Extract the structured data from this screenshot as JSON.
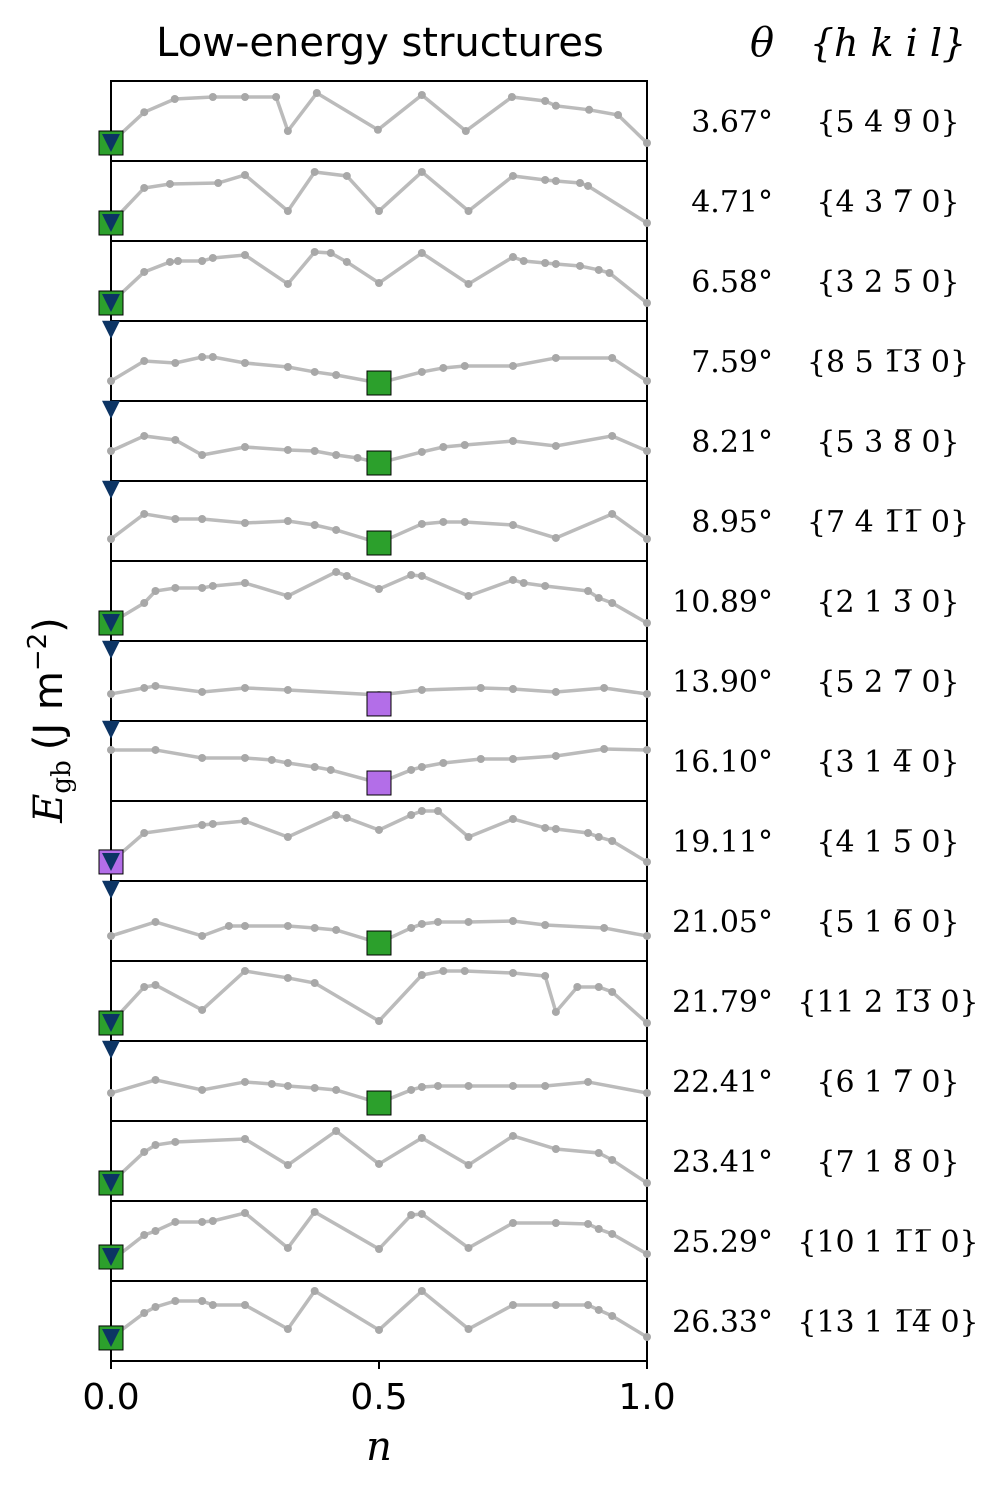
{
  "chart_data": {
    "type": "line",
    "title": "Low-energy structures",
    "theta_header": "θ",
    "plane_header": "{h k i l}",
    "ylabel": {
      "symbol": "E",
      "subscript": "gb",
      "unit": "(J m",
      "exponent": "−2",
      "close": ")"
    },
    "xlabel": "n",
    "xlim": [
      0,
      1
    ],
    "xticks": [
      {
        "value": 0,
        "label": "0.0"
      },
      {
        "value": 0.5,
        "label": "0.5"
      },
      {
        "value": 1,
        "label": "1.0"
      }
    ],
    "ylim": [
      0,
      1
    ],
    "line_color": "#bbbbbb",
    "triangle_color": "#0c3464",
    "panels": [
      {
        "theta": "3.67°",
        "plane": "{5 4 9̅ 0}",
        "x": [
          0,
          0.062,
          0.119,
          0.19,
          0.25,
          0.308,
          0.33,
          0.384,
          0.498,
          0.58,
          0.662,
          0.748,
          0.81,
          0.83,
          0.892,
          0.946,
          1
        ],
        "values": [
          0.225,
          0.61,
          0.775,
          0.8,
          0.8,
          0.8,
          0.375,
          0.85,
          0.39,
          0.825,
          0.375,
          0.8,
          0.75,
          0.69,
          0.64,
          0.575,
          0.225
        ],
        "square": {
          "x": 0,
          "y": 0.225,
          "color": "#2ca02c"
        },
        "triangle": {
          "x": 0,
          "y": 0.225
        }
      },
      {
        "theta": "4.71°",
        "plane": "{4 3 7̅ 0}",
        "x": [
          0,
          0.062,
          0.11,
          0.2,
          0.25,
          0.33,
          0.38,
          0.44,
          0.5,
          0.58,
          0.667,
          0.75,
          0.81,
          0.83,
          0.875,
          0.89,
          1
        ],
        "values": [
          0.225,
          0.663,
          0.713,
          0.725,
          0.825,
          0.375,
          0.863,
          0.813,
          0.375,
          0.863,
          0.375,
          0.813,
          0.763,
          0.75,
          0.725,
          0.688,
          0.225
        ],
        "square": {
          "x": 0,
          "y": 0.225,
          "color": "#2ca02c"
        },
        "triangle": {
          "x": 0,
          "y": 0.225
        }
      },
      {
        "theta": "6.58°",
        "plane": "{3 2 5̅ 0}",
        "x": [
          0,
          0.062,
          0.11,
          0.125,
          0.17,
          0.19,
          0.25,
          0.33,
          0.38,
          0.41,
          0.44,
          0.5,
          0.58,
          0.667,
          0.75,
          0.77,
          0.81,
          0.83,
          0.875,
          0.91,
          0.93,
          1
        ],
        "values": [
          0.225,
          0.613,
          0.738,
          0.75,
          0.75,
          0.788,
          0.825,
          0.463,
          0.863,
          0.85,
          0.738,
          0.475,
          0.85,
          0.463,
          0.8,
          0.75,
          0.725,
          0.713,
          0.688,
          0.638,
          0.6,
          0.225
        ],
        "square": {
          "x": 0,
          "y": 0.225,
          "color": "#2ca02c"
        },
        "triangle": {
          "x": 0,
          "y": 0.225
        }
      },
      {
        "theta": "7.59°",
        "plane": "{8 5 1̅3̅ 0}",
        "x": [
          0,
          0.062,
          0.12,
          0.17,
          0.19,
          0.25,
          0.33,
          0.38,
          0.42,
          0.5,
          0.58,
          0.62,
          0.66,
          0.75,
          0.83,
          0.935,
          1
        ],
        "values": [
          0.25,
          0.5,
          0.475,
          0.55,
          0.55,
          0.475,
          0.425,
          0.363,
          0.325,
          0.225,
          0.363,
          0.413,
          0.438,
          0.438,
          0.538,
          0.538,
          0.25
        ],
        "square": {
          "x": 0.5,
          "y": 0.225,
          "color": "#2ca02c"
        },
        "triangle": {
          "x": 0,
          "y": 0.89
        }
      },
      {
        "theta": "8.21°",
        "plane": "{5 3 8̅ 0}",
        "x": [
          0,
          0.062,
          0.12,
          0.17,
          0.25,
          0.33,
          0.38,
          0.42,
          0.46,
          0.5,
          0.58,
          0.62,
          0.66,
          0.75,
          0.83,
          0.935,
          1
        ],
        "values": [
          0.375,
          0.563,
          0.513,
          0.325,
          0.425,
          0.388,
          0.375,
          0.325,
          0.288,
          0.225,
          0.363,
          0.425,
          0.45,
          0.5,
          0.438,
          0.563,
          0.375
        ],
        "square": {
          "x": 0.5,
          "y": 0.225,
          "color": "#2ca02c"
        },
        "triangle": {
          "x": 0,
          "y": 0.89
        }
      },
      {
        "theta": "8.95°",
        "plane": "{7 4 1̅1̅ 0}",
        "x": [
          0,
          0.062,
          0.12,
          0.17,
          0.25,
          0.33,
          0.38,
          0.42,
          0.5,
          0.58,
          0.62,
          0.66,
          0.75,
          0.83,
          0.935,
          1
        ],
        "values": [
          0.275,
          0.588,
          0.525,
          0.525,
          0.475,
          0.5,
          0.45,
          0.388,
          0.225,
          0.463,
          0.488,
          0.488,
          0.45,
          0.288,
          0.588,
          0.275
        ],
        "square": {
          "x": 0.5,
          "y": 0.225,
          "color": "#2ca02c"
        },
        "triangle": {
          "x": 0,
          "y": 0.89
        }
      },
      {
        "theta": "10.89°",
        "plane": "{2 1 3̅ 0}",
        "x": [
          0,
          0.062,
          0.083,
          0.12,
          0.17,
          0.19,
          0.25,
          0.33,
          0.42,
          0.44,
          0.5,
          0.56,
          0.58,
          0.667,
          0.75,
          0.77,
          0.81,
          0.89,
          0.91,
          0.935,
          1
        ],
        "values": [
          0.225,
          0.475,
          0.625,
          0.663,
          0.663,
          0.688,
          0.725,
          0.563,
          0.863,
          0.813,
          0.65,
          0.825,
          0.813,
          0.563,
          0.763,
          0.725,
          0.688,
          0.625,
          0.538,
          0.475,
          0.225
        ],
        "square": {
          "x": 0,
          "y": 0.225,
          "color": "#2ca02c"
        },
        "triangle": {
          "x": 0,
          "y": 0.225
        }
      },
      {
        "theta": "13.90°",
        "plane": "{5 2 7̅ 0}",
        "x": [
          0,
          0.062,
          0.083,
          0.17,
          0.25,
          0.33,
          0.5,
          0.58,
          0.69,
          0.75,
          0.83,
          0.92,
          1
        ],
        "values": [
          0.338,
          0.413,
          0.438,
          0.363,
          0.413,
          0.388,
          0.325,
          0.388,
          0.413,
          0.4,
          0.363,
          0.413,
          0.338
        ],
        "square": {
          "x": 0.5,
          "y": 0.213,
          "color": "#b36ee8"
        },
        "triangle": {
          "x": 0,
          "y": 0.89
        }
      },
      {
        "theta": "16.10°",
        "plane": "{3 1 4̅ 0}",
        "x": [
          0,
          0.083,
          0.17,
          0.25,
          0.3,
          0.33,
          0.38,
          0.41,
          0.5,
          0.56,
          0.58,
          0.62,
          0.69,
          0.75,
          0.83,
          0.92,
          1
        ],
        "values": [
          0.638,
          0.638,
          0.538,
          0.538,
          0.513,
          0.475,
          0.425,
          0.388,
          0.225,
          0.388,
          0.425,
          0.475,
          0.525,
          0.525,
          0.563,
          0.65,
          0.638
        ],
        "square": {
          "x": 0.5,
          "y": 0.225,
          "color": "#b36ee8"
        },
        "triangle": {
          "x": 0,
          "y": 0.89
        }
      },
      {
        "theta": "19.11°",
        "plane": "{4 1 5̅ 0}",
        "x": [
          0,
          0.062,
          0.17,
          0.19,
          0.25,
          0.33,
          0.42,
          0.44,
          0.5,
          0.56,
          0.58,
          0.61,
          0.667,
          0.75,
          0.81,
          0.83,
          0.89,
          0.91,
          0.935,
          1
        ],
        "values": [
          0.238,
          0.6,
          0.7,
          0.713,
          0.75,
          0.55,
          0.825,
          0.788,
          0.638,
          0.825,
          0.875,
          0.875,
          0.55,
          0.775,
          0.663,
          0.65,
          0.6,
          0.55,
          0.5,
          0.238
        ],
        "square": {
          "x": 0,
          "y": 0.238,
          "color": "#b36ee8"
        },
        "triangle": {
          "x": 0,
          "y": 0.238
        }
      },
      {
        "theta": "21.05°",
        "plane": "{5 1 6̅ 0}",
        "x": [
          0,
          0.083,
          0.17,
          0.22,
          0.25,
          0.33,
          0.38,
          0.42,
          0.5,
          0.56,
          0.58,
          0.61,
          0.667,
          0.75,
          0.81,
          0.92,
          1
        ],
        "values": [
          0.313,
          0.488,
          0.313,
          0.438,
          0.438,
          0.438,
          0.413,
          0.388,
          0.225,
          0.413,
          0.463,
          0.488,
          0.488,
          0.5,
          0.45,
          0.413,
          0.313
        ],
        "square": {
          "x": 0.5,
          "y": 0.225,
          "color": "#2ca02c"
        },
        "triangle": {
          "x": 0,
          "y": 0.89
        }
      },
      {
        "theta": "21.79°",
        "plane": "{11 2 1̅3̅ 0}",
        "x": [
          0,
          0.062,
          0.083,
          0.17,
          0.25,
          0.33,
          0.38,
          0.5,
          0.58,
          0.62,
          0.66,
          0.75,
          0.81,
          0.83,
          0.87,
          0.91,
          0.935,
          1
        ],
        "values": [
          0.225,
          0.675,
          0.7,
          0.388,
          0.875,
          0.788,
          0.725,
          0.25,
          0.825,
          0.875,
          0.875,
          0.85,
          0.813,
          0.363,
          0.675,
          0.675,
          0.613,
          0.225
        ],
        "square": {
          "x": 0,
          "y": 0.225,
          "color": "#2ca02c"
        },
        "triangle": {
          "x": 0,
          "y": 0.225
        }
      },
      {
        "theta": "22.41°",
        "plane": "{6 1 7̅ 0}",
        "x": [
          0,
          0.083,
          0.17,
          0.25,
          0.3,
          0.33,
          0.38,
          0.42,
          0.5,
          0.56,
          0.58,
          0.61,
          0.667,
          0.75,
          0.81,
          0.89,
          1
        ],
        "values": [
          0.35,
          0.513,
          0.388,
          0.488,
          0.463,
          0.438,
          0.413,
          0.388,
          0.225,
          0.388,
          0.425,
          0.438,
          0.438,
          0.438,
          0.438,
          0.488,
          0.35
        ],
        "square": {
          "x": 0.5,
          "y": 0.225,
          "color": "#2ca02c"
        },
        "triangle": {
          "x": 0,
          "y": 0.89
        }
      },
      {
        "theta": "23.41°",
        "plane": "{7 1 8̅ 0}",
        "x": [
          0,
          0.062,
          0.083,
          0.12,
          0.25,
          0.33,
          0.42,
          0.5,
          0.58,
          0.667,
          0.75,
          0.83,
          0.91,
          0.935,
          1
        ],
        "values": [
          0.225,
          0.613,
          0.7,
          0.738,
          0.775,
          0.45,
          0.875,
          0.463,
          0.788,
          0.45,
          0.813,
          0.65,
          0.6,
          0.513,
          0.225
        ],
        "square": {
          "x": 0,
          "y": 0.225,
          "color": "#2ca02c"
        },
        "triangle": {
          "x": 0,
          "y": 0.225
        }
      },
      {
        "theta": "25.29°",
        "plane": "{10 1 1̅1̅ 0}",
        "x": [
          0,
          0.062,
          0.083,
          0.12,
          0.17,
          0.19,
          0.25,
          0.33,
          0.38,
          0.5,
          0.56,
          0.58,
          0.667,
          0.75,
          0.83,
          0.89,
          0.91,
          0.935,
          1
        ],
        "values": [
          0.25,
          0.575,
          0.625,
          0.738,
          0.738,
          0.75,
          0.85,
          0.413,
          0.863,
          0.4,
          0.825,
          0.838,
          0.413,
          0.725,
          0.725,
          0.713,
          0.65,
          0.588,
          0.338
        ],
        "square": {
          "x": 0,
          "y": 0.3,
          "color": "#2ca02c"
        },
        "triangle": {
          "x": 0,
          "y": 0.3
        }
      },
      {
        "theta": "26.33°",
        "plane": "{13 1 1̅4̅ 0}",
        "x": [
          0,
          0.062,
          0.083,
          0.12,
          0.17,
          0.19,
          0.25,
          0.33,
          0.38,
          0.5,
          0.58,
          0.667,
          0.75,
          0.83,
          0.89,
          0.91,
          0.935,
          1
        ],
        "values": [
          0.288,
          0.6,
          0.675,
          0.75,
          0.75,
          0.7,
          0.7,
          0.4,
          0.875,
          0.388,
          0.875,
          0.4,
          0.7,
          0.7,
          0.7,
          0.638,
          0.563,
          0.3
        ],
        "square": {
          "x": 0,
          "y": 0.288,
          "color": "#2ca02c"
        },
        "triangle": {
          "x": 0,
          "y": 0.288
        }
      }
    ]
  }
}
